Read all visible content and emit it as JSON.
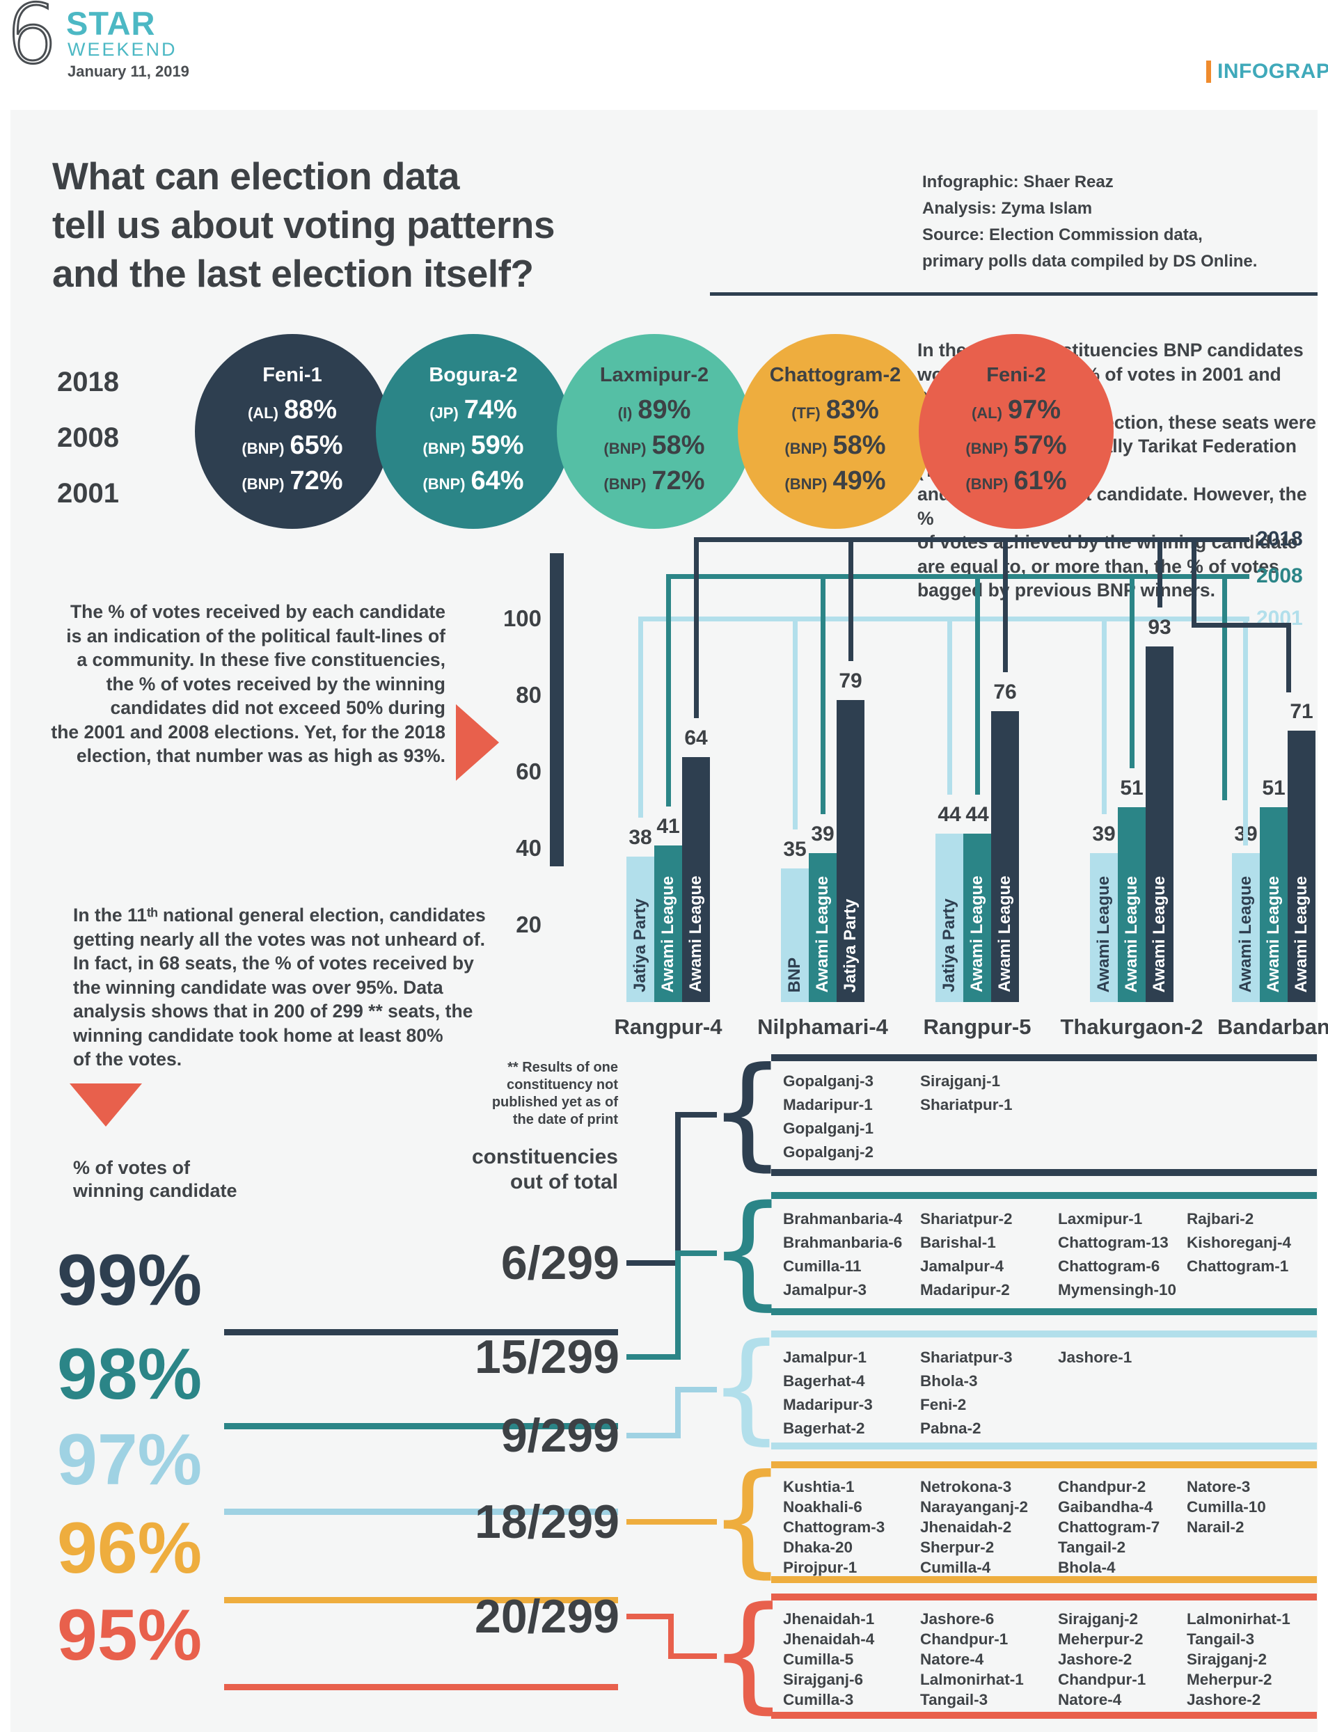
{
  "page": {
    "number": "6",
    "brand": "STAR",
    "brand_sub": "WEEKEND",
    "date": "January 11, 2019",
    "section": "INFOGRAPHIC"
  },
  "title": "What can election data\ntell us about voting patterns\nand the last election itself?",
  "credits": "Infographic: Shaer Reaz\nAnalysis: Zyma Islam\nSource: Election Commission data,\nprimary polls data compiled by DS Online.",
  "intro_years": [
    "2018",
    "2008",
    "2001"
  ],
  "circles": [
    {
      "name": "Feni-1",
      "color": "#2e3f50",
      "text_color": "#ffffff",
      "rows": [
        {
          "party": "(AL)",
          "value": "88%"
        },
        {
          "party": "(BNP)",
          "value": "65%"
        },
        {
          "party": "(BNP)",
          "value": "72%"
        }
      ]
    },
    {
      "name": "Bogura-2",
      "color": "#2b8587",
      "text_color": "#ffffff",
      "rows": [
        {
          "party": "(JP)",
          "value": "74%"
        },
        {
          "party": "(BNP)",
          "value": "59%"
        },
        {
          "party": "(BNP)",
          "value": "64%"
        }
      ]
    },
    {
      "name": "Laxmipur-2",
      "color": "#55bfa5",
      "text_color": "#3d4145",
      "rows": [
        {
          "party": "(I)",
          "value": "89%"
        },
        {
          "party": "(BNP)",
          "value": "58%"
        },
        {
          "party": "(BNP)",
          "value": "72%"
        }
      ]
    },
    {
      "name": "Chattogram-2",
      "color": "#eead3e",
      "text_color": "#3d4145",
      "rows": [
        {
          "party": "(TF)",
          "value": "83%"
        },
        {
          "party": "(BNP)",
          "value": "58%"
        },
        {
          "party": "(BNP)",
          "value": "49%"
        }
      ]
    },
    {
      "name": "Feni-2",
      "color": "#e8604c",
      "text_color": "#3d4145",
      "rows": [
        {
          "party": "(AL)",
          "value": "97%"
        },
        {
          "party": "(BNP)",
          "value": "57%"
        },
        {
          "party": "(BNP)",
          "value": "61%"
        }
      ]
    }
  ],
  "bnp_paragraph": "In these five constituencies BNP candidates\nwon with the most % of votes in 2001 and 2008.\nIn the 2018 general election, these seats were\ntaken over by AL, its ally Tarikat Federation (TF),\nand an independent candidate. However, the %\nof votes achieved by the winning candidate\nare equal to, or more than, the % of votes\nbagged by previous BNP winners.",
  "faultlines_paragraph": "The % of votes received by each candidate\nis an indication of the political fault-lines of\na community. In these five constituencies,\nthe % of votes received by the winning\ncandidates did not exceed 50% during\nthe 2001 and 2008 elections. Yet, for the 2018\nelection, that number was as high as 93%.",
  "election_paragraph": "In the 11ᵗʰ national general election, candidates\ngetting nearly all the votes was not unheard of.\nIn fact, in 68 seats, the % of votes received by\nthe winning candidate was over 95%.  Data\nanalysis shows that in 200 of 299 ** seats, the\nwinning candidate took home at least 80%\nof the votes.",
  "chart_data": {
    "type": "bar",
    "ylim": [
      0,
      100
    ],
    "y_ticks": [
      100,
      80,
      60,
      40,
      20
    ],
    "legend": [
      {
        "year": "2018",
        "color": "#2e3f50"
      },
      {
        "year": "2008",
        "color": "#2b8587"
      },
      {
        "year": "2001",
        "color": "#b2dfeb"
      }
    ],
    "groups": [
      {
        "label": "Rangpur-4",
        "bars": [
          {
            "year": "2001",
            "party": "Jatiya Party",
            "value": 38
          },
          {
            "year": "2008",
            "party": "Awami League",
            "value": 41
          },
          {
            "year": "2018",
            "party": "Awami League",
            "value": 64
          }
        ]
      },
      {
        "label": "Nilphamari-4",
        "bars": [
          {
            "year": "2001",
            "party": "BNP",
            "value": 35
          },
          {
            "year": "2008",
            "party": "Awami League",
            "value": 39
          },
          {
            "year": "2018",
            "party": "Jatiya Party",
            "value": 79
          }
        ]
      },
      {
        "label": "Rangpur-5",
        "bars": [
          {
            "year": "2001",
            "party": "Jatiya Party",
            "value": 44
          },
          {
            "year": "2008",
            "party": "Awami League",
            "value": 44
          },
          {
            "year": "2018",
            "party": "Awami League",
            "value": 76
          }
        ]
      },
      {
        "label": "Thakurgaon-2",
        "bars": [
          {
            "year": "2001",
            "party": "Awami League",
            "value": 39
          },
          {
            "year": "2008",
            "party": "Awami League",
            "value": 51
          },
          {
            "year": "2018",
            "party": "Awami League",
            "value": 93
          }
        ]
      },
      {
        "label": "Bandarban",
        "bars": [
          {
            "year": "2001",
            "party": "Awami League",
            "value": 39
          },
          {
            "year": "2008",
            "party": "Awami League",
            "value": 51
          },
          {
            "year": "2018",
            "party": "Awami League",
            "value": 71
          }
        ]
      }
    ]
  },
  "breakdown": {
    "axis_label": "% of votes of\nwinning candidate",
    "note": "** Results of one\nconstituency not\npublished yet as of\nthe date of print",
    "header": "constituencies\nout of total",
    "rows": [
      {
        "percent": "99%",
        "fraction": "6/299",
        "color": "#2e3f50",
        "border_color": "#2e3f50",
        "columns": [
          [
            "Gopalganj-3",
            "Madaripur-1",
            "Gopalganj-1",
            "Gopalganj-2"
          ],
          [
            "Sirajganj-1",
            "Shariatpur-1"
          ]
        ]
      },
      {
        "percent": "98%",
        "fraction": "15/299",
        "color": "#2b8587",
        "border_color": "#2b8587",
        "columns": [
          [
            "Brahmanbaria-4",
            "Brahmanbaria-6",
            "Cumilla-11",
            "Jamalpur-3"
          ],
          [
            "Shariatpur-2",
            "Barishal-1",
            "Jamalpur-4",
            "Madaripur-2"
          ],
          [
            "Laxmipur-1",
            "Chattogram-13",
            "Chattogram-6",
            "Mymensingh-10"
          ],
          [
            "Rajbari-2",
            "Kishoreganj-4",
            "Chattogram-1"
          ]
        ]
      },
      {
        "percent": "97%",
        "fraction": "9/299",
        "color": "#9fd2e3",
        "border_color": "#b2dfeb",
        "columns": [
          [
            "Jamalpur-1",
            "Bagerhat-4",
            "Madaripur-3",
            "Bagerhat-2"
          ],
          [
            "Shariatpur-3",
            "Bhola-3",
            "Feni-2",
            "Pabna-2"
          ],
          [
            "Jashore-1"
          ]
        ]
      },
      {
        "percent": "96%",
        "fraction": "18/299",
        "color": "#eead3e",
        "border_color": "#eead3e",
        "columns": [
          [
            "Kushtia-1",
            "Noakhali-6",
            "Chattogram-3",
            "Dhaka-20",
            "Pirojpur-1"
          ],
          [
            "Netrokona-3",
            "Narayanganj-2",
            "Jhenaidah-2",
            "Sherpur-2",
            "Cumilla-4"
          ],
          [
            "Chandpur-2",
            "Gaibandha-4",
            "Chattogram-7",
            "Tangail-2",
            "Bhola-4"
          ],
          [
            "Natore-3",
            "Cumilla-10",
            "Narail-2"
          ]
        ]
      },
      {
        "percent": "95%",
        "fraction": "20/299",
        "color": "#e8604c",
        "border_color": "#e8604c",
        "columns": [
          [
            "Jhenaidah-1",
            "Jhenaidah-4",
            "Cumilla-5",
            "Sirajganj-6",
            "Cumilla-3"
          ],
          [
            "Jashore-6",
            "Chandpur-1",
            "Natore-4",
            "Lalmonirhat-1",
            "Tangail-3"
          ],
          [
            "Sirajganj-2",
            "Meherpur-2",
            "Jashore-2",
            "Chandpur-1",
            "Natore-4"
          ],
          [
            "Lalmonirhat-1",
            "Tangail-3",
            "Sirajganj-2",
            "Meherpur-2",
            "Jashore-2"
          ]
        ]
      }
    ]
  },
  "colors": {
    "dark": "#2e3f50",
    "teal": "#2b8587",
    "light_blue": "#b2dfeb",
    "orange": "#eead3e",
    "red": "#e8604c",
    "text": "#3f4347"
  }
}
